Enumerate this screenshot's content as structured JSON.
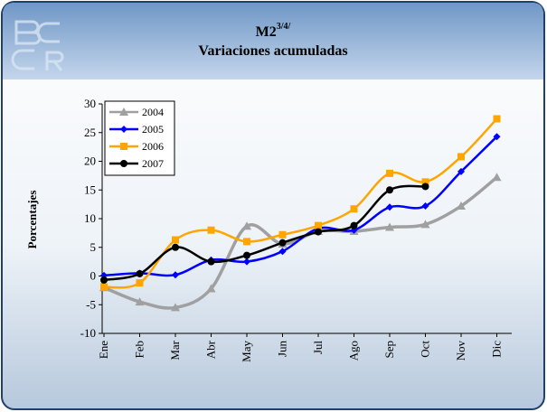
{
  "chart_data": {
    "type": "line",
    "title": "M2",
    "title_superscript": "3/4/",
    "subtitle": "Variaciones acumuladas",
    "y_label": "Porcentajes",
    "categories": [
      "Ene",
      "Feb",
      "Mar",
      "Abr",
      "May",
      "Jun",
      "Jul",
      "Ago",
      "Sep",
      "Oct",
      "Nov",
      "Dic"
    ],
    "series": [
      {
        "name": "2004",
        "color": "#a0a0a0",
        "marker": "triangle",
        "values": [
          -2.0,
          -4.5,
          -5.5,
          -2.2,
          8.7,
          5.6,
          7.8,
          7.8,
          8.5,
          9.0,
          12.2,
          17.2
        ]
      },
      {
        "name": "2005",
        "color": "#0000ff",
        "marker": "diamond",
        "values": [
          0.1,
          0.5,
          0.2,
          2.8,
          2.5,
          4.3,
          8.3,
          8.0,
          12.0,
          12.2,
          18.2,
          24.3
        ]
      },
      {
        "name": "2006",
        "color": "#ffa500",
        "marker": "square",
        "values": [
          -1.9,
          -1.2,
          6.3,
          8.0,
          6.0,
          7.2,
          8.8,
          11.7,
          17.9,
          16.4,
          20.8,
          27.4
        ]
      },
      {
        "name": "2007",
        "color": "#000000",
        "marker": "circle",
        "values": [
          -0.7,
          0.4,
          5.0,
          2.5,
          3.6,
          5.8,
          7.7,
          8.8,
          15.0,
          15.6,
          null,
          null
        ]
      }
    ],
    "ylim": [
      -10,
      30
    ],
    "yticks": [
      -10,
      -5,
      0,
      5,
      10,
      15,
      20,
      25,
      30
    ],
    "legend": "top-left",
    "smooth": true
  }
}
